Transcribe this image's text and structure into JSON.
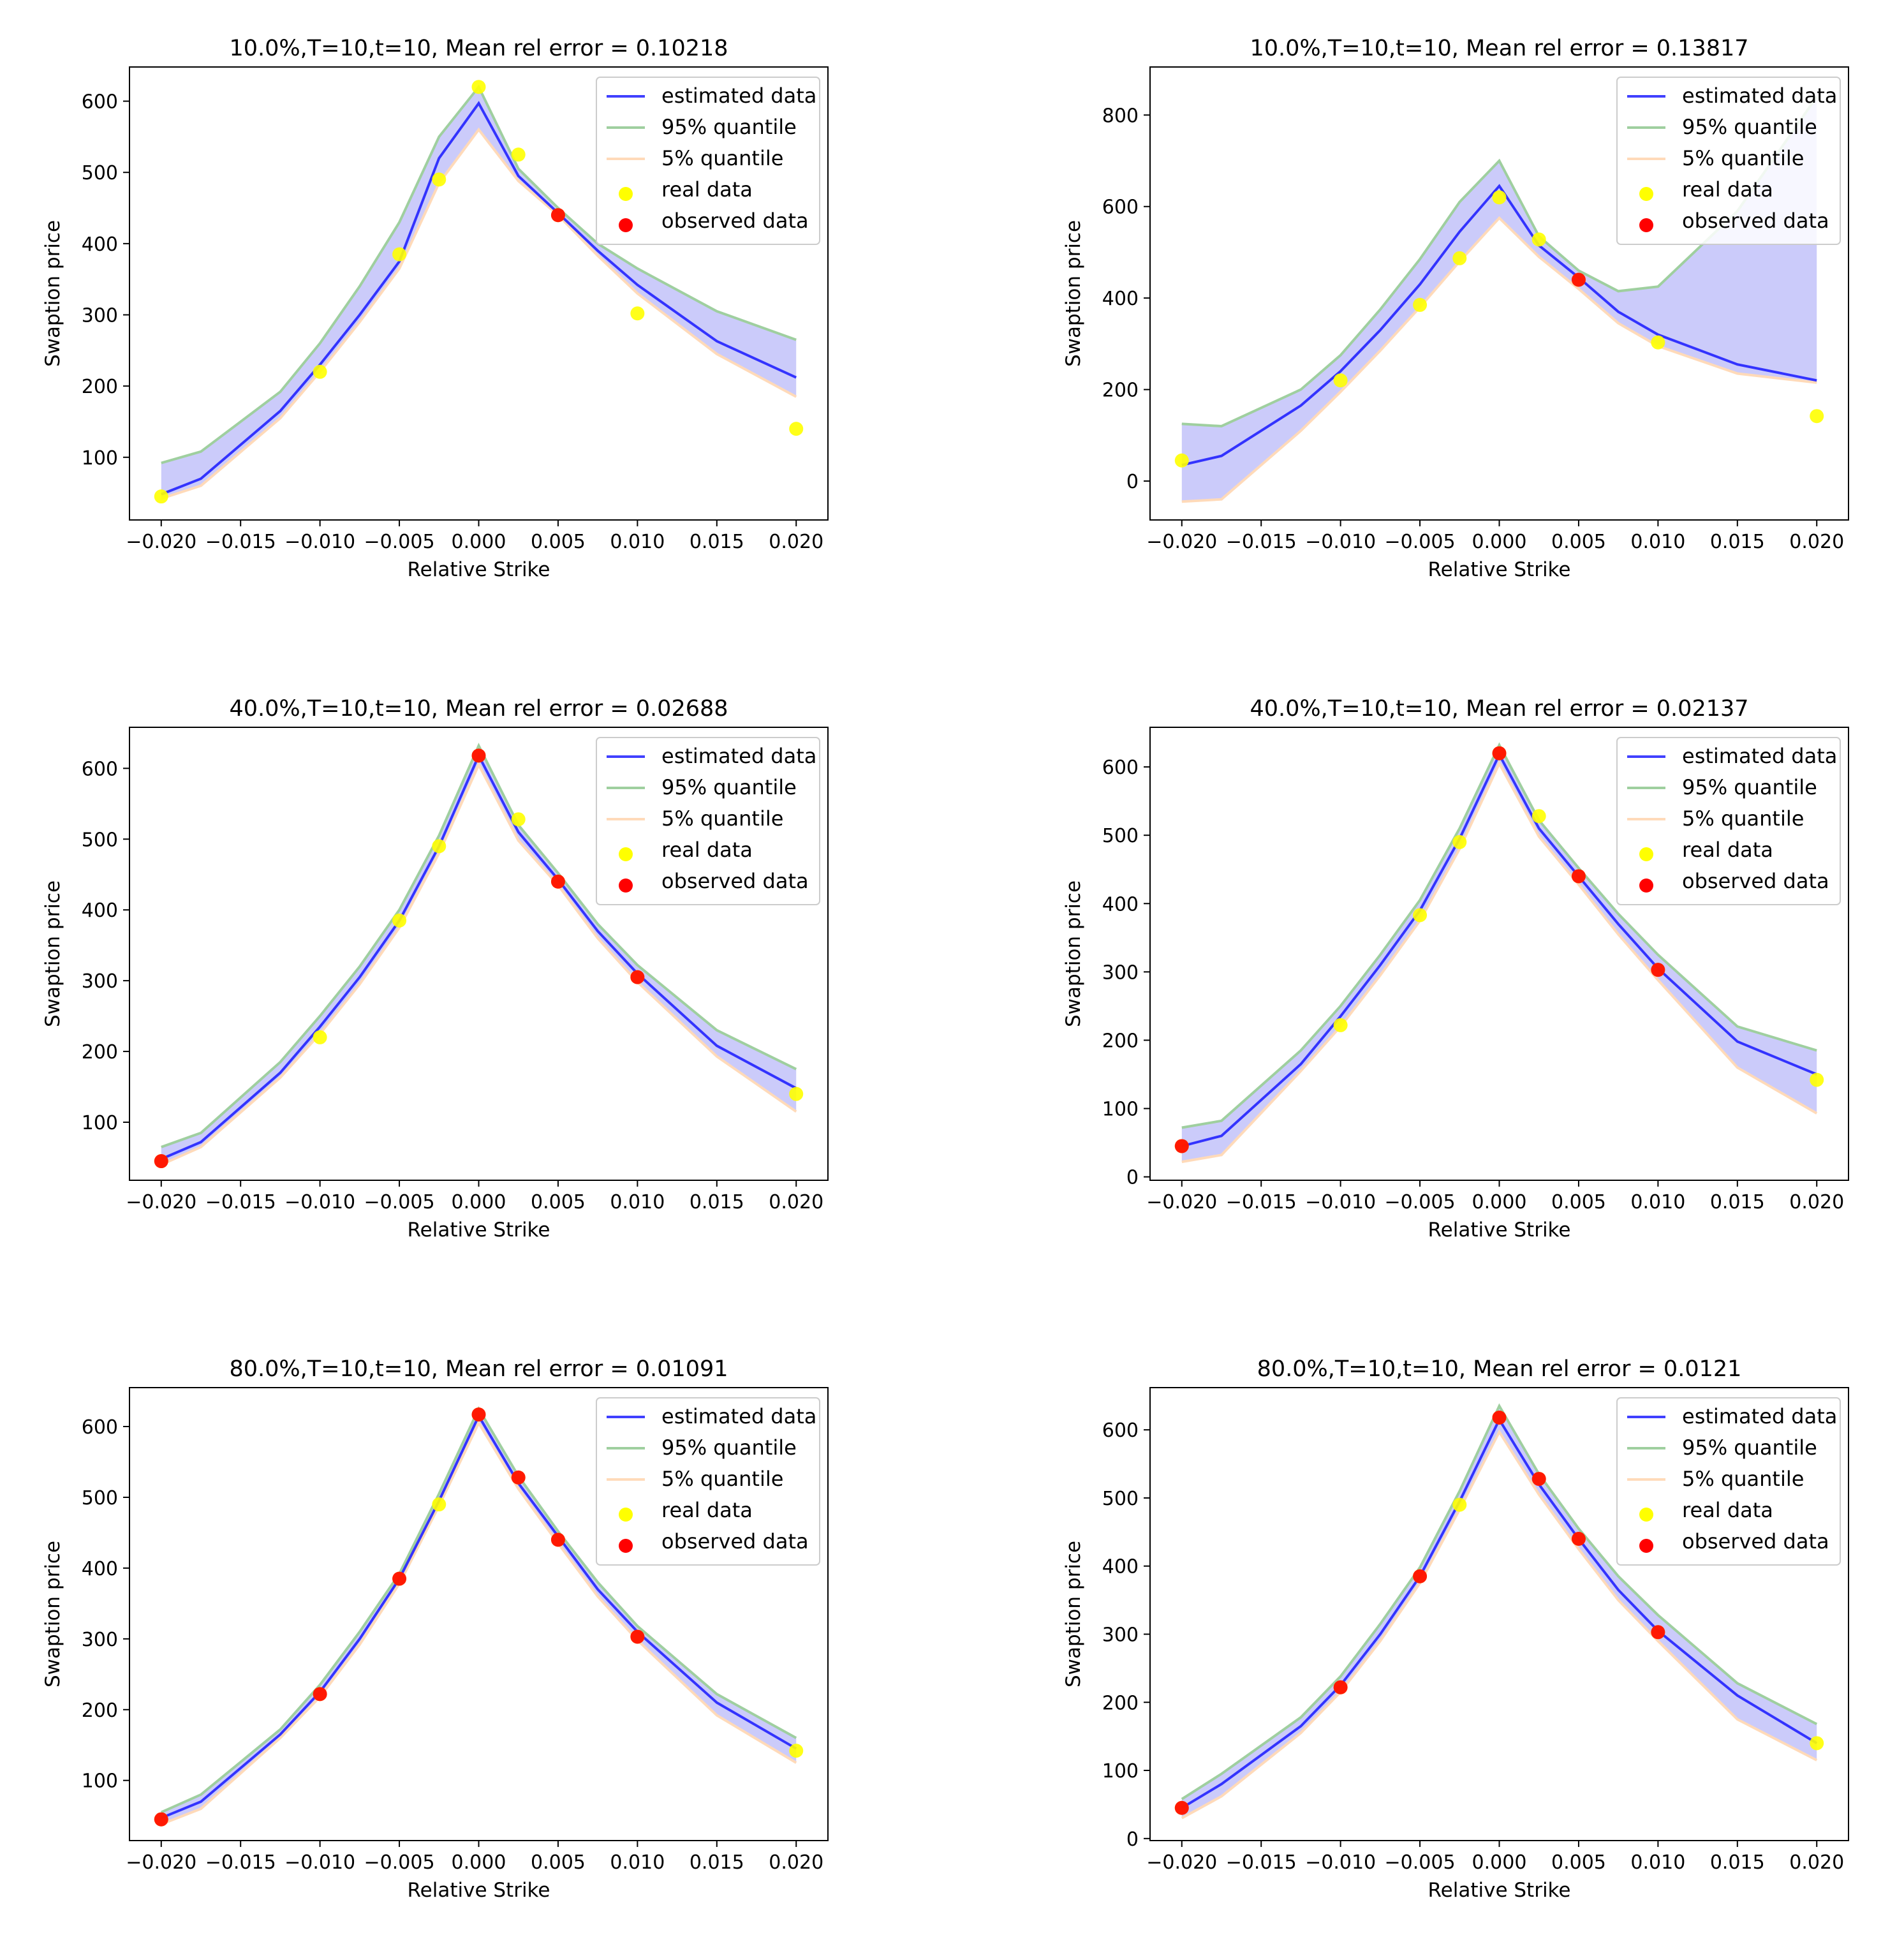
{
  "chart_data": [
    {
      "type": "line",
      "title": "10.0%,T=10,t=10, Mean rel error = 0.10218",
      "xlabel": "Relative Strike",
      "ylabel": "Swaption price",
      "xlim": [
        -0.022,
        0.022
      ],
      "ylim": [
        12,
        648
      ],
      "xticks": [
        -0.02,
        -0.015,
        -0.01,
        -0.005,
        0.0,
        0.005,
        0.01,
        0.015,
        0.02
      ],
      "xtick_labels": [
        "−0.020",
        "−0.015",
        "−0.010",
        "−0.005",
        "0.000",
        "0.005",
        "0.010",
        "0.015",
        "0.020"
      ],
      "yticks": [
        100,
        200,
        300,
        400,
        500,
        600
      ],
      "ytick_labels": [
        "100",
        "200",
        "300",
        "400",
        "500",
        "600"
      ],
      "x": [
        -0.02,
        -0.0175,
        -0.0125,
        -0.01,
        -0.0075,
        -0.005,
        -0.0025,
        0.0,
        0.0025,
        0.005,
        0.0075,
        0.01,
        0.015,
        0.02
      ],
      "estimated": [
        48,
        70,
        165,
        230,
        300,
        375,
        520,
        597,
        495,
        443,
        390,
        342,
        263,
        212
      ],
      "upper": [
        92,
        108,
        192,
        260,
        340,
        430,
        550,
        620,
        505,
        450,
        400,
        365,
        305,
        265
      ],
      "lower": [
        42,
        60,
        155,
        220,
        290,
        365,
        485,
        560,
        488,
        440,
        383,
        330,
        245,
        185
      ],
      "real": [
        {
          "x": -0.02,
          "y": 45
        },
        {
          "x": -0.01,
          "y": 220
        },
        {
          "x": -0.005,
          "y": 385
        },
        {
          "x": -0.0025,
          "y": 490
        },
        {
          "x": 0.0,
          "y": 620
        },
        {
          "x": 0.0025,
          "y": 525
        },
        {
          "x": 0.005,
          "y": 440
        },
        {
          "x": 0.01,
          "y": 302
        },
        {
          "x": 0.02,
          "y": 140
        }
      ],
      "observed": [
        {
          "x": 0.005,
          "y": 440
        }
      ],
      "legend": [
        "estimated data",
        "95% quantile",
        "5% quantile",
        "real data",
        "observed data"
      ],
      "legend_loc": "upper right",
      "grid": false
    },
    {
      "type": "line",
      "title": "10.0%,T=10,t=10, Mean rel error = 0.13817",
      "xlabel": "Relative Strike",
      "ylabel": "Swaption price",
      "xlim": [
        -0.022,
        0.022
      ],
      "ylim": [
        -85,
        905
      ],
      "xticks": [
        -0.02,
        -0.015,
        -0.01,
        -0.005,
        0.0,
        0.005,
        0.01,
        0.015,
        0.02
      ],
      "xtick_labels": [
        "−0.020",
        "−0.015",
        "−0.010",
        "−0.005",
        "0.000",
        "0.005",
        "0.010",
        "0.015",
        "0.020"
      ],
      "yticks": [
        0,
        200,
        400,
        600,
        800
      ],
      "ytick_labels": [
        "0",
        "200",
        "400",
        "600",
        "800"
      ],
      "x": [
        -0.02,
        -0.0175,
        -0.0125,
        -0.01,
        -0.0075,
        -0.005,
        -0.0025,
        0.0,
        0.0025,
        0.005,
        0.0075,
        0.01,
        0.015,
        0.02
      ],
      "estimated": [
        35,
        55,
        165,
        240,
        330,
        430,
        545,
        645,
        515,
        445,
        370,
        320,
        255,
        220
      ],
      "upper": [
        125,
        120,
        200,
        275,
        375,
        485,
        610,
        700,
        535,
        460,
        415,
        425,
        590,
        840
      ],
      "lower": [
        -45,
        -40,
        110,
        195,
        285,
        380,
        480,
        575,
        490,
        420,
        345,
        295,
        235,
        215
      ],
      "real": [
        {
          "x": -0.02,
          "y": 45
        },
        {
          "x": -0.01,
          "y": 220
        },
        {
          "x": -0.005,
          "y": 385
        },
        {
          "x": -0.0025,
          "y": 487
        },
        {
          "x": 0.0,
          "y": 620
        },
        {
          "x": 0.0025,
          "y": 528
        },
        {
          "x": 0.005,
          "y": 440
        },
        {
          "x": 0.01,
          "y": 303
        },
        {
          "x": 0.02,
          "y": 142
        }
      ],
      "observed": [
        {
          "x": 0.005,
          "y": 440
        }
      ],
      "legend": [
        "estimated data",
        "95% quantile",
        "5% quantile",
        "real data",
        "observed data"
      ],
      "legend_loc": "upper right",
      "grid": false
    },
    {
      "type": "line",
      "title": "40.0%,T=10,t=10, Mean rel error = 0.02688",
      "xlabel": "Relative Strike",
      "ylabel": "Swaption price",
      "xlim": [
        -0.022,
        0.022
      ],
      "ylim": [
        18,
        658
      ],
      "xticks": [
        -0.02,
        -0.015,
        -0.01,
        -0.005,
        0.0,
        0.005,
        0.01,
        0.015,
        0.02
      ],
      "xtick_labels": [
        "−0.020",
        "−0.015",
        "−0.010",
        "−0.005",
        "0.000",
        "0.005",
        "0.010",
        "0.015",
        "0.020"
      ],
      "yticks": [
        100,
        200,
        300,
        400,
        500,
        600
      ],
      "ytick_labels": [
        "100",
        "200",
        "300",
        "400",
        "500",
        "600"
      ],
      "x": [
        -0.02,
        -0.0175,
        -0.0125,
        -0.01,
        -0.0075,
        -0.005,
        -0.0025,
        0.0,
        0.0025,
        0.005,
        0.0075,
        0.01,
        0.015,
        0.02
      ],
      "estimated": [
        48,
        72,
        170,
        235,
        305,
        385,
        490,
        618,
        510,
        443,
        370,
        310,
        208,
        148
      ],
      "upper": [
        65,
        85,
        185,
        250,
        320,
        400,
        505,
        632,
        520,
        452,
        380,
        322,
        230,
        175
      ],
      "lower": [
        40,
        65,
        163,
        225,
        295,
        375,
        480,
        605,
        498,
        435,
        360,
        298,
        193,
        115
      ],
      "real": [
        {
          "x": -0.02,
          "y": 45
        },
        {
          "x": -0.01,
          "y": 220
        },
        {
          "x": -0.005,
          "y": 385
        },
        {
          "x": -0.0025,
          "y": 490
        },
        {
          "x": 0.0,
          "y": 618
        },
        {
          "x": 0.0025,
          "y": 528
        },
        {
          "x": 0.005,
          "y": 440
        },
        {
          "x": 0.01,
          "y": 305
        },
        {
          "x": 0.02,
          "y": 140
        }
      ],
      "observed": [
        {
          "x": -0.02,
          "y": 45
        },
        {
          "x": 0.0,
          "y": 618
        },
        {
          "x": 0.005,
          "y": 440
        },
        {
          "x": 0.01,
          "y": 305
        }
      ],
      "legend": [
        "estimated data",
        "95% quantile",
        "5% quantile",
        "real data",
        "observed data"
      ],
      "legend_loc": "upper right",
      "grid": false
    },
    {
      "type": "line",
      "title": "40.0%,T=10,t=10, Mean rel error = 0.02137",
      "xlabel": "Relative Strike",
      "ylabel": "Swaption price",
      "xlim": [
        -0.022,
        0.022
      ],
      "ylim": [
        -5,
        658
      ],
      "xticks": [
        -0.02,
        -0.015,
        -0.01,
        -0.005,
        0.0,
        0.005,
        0.01,
        0.015,
        0.02
      ],
      "xtick_labels": [
        "−0.020",
        "−0.015",
        "−0.010",
        "−0.005",
        "0.000",
        "0.005",
        "0.010",
        "0.015",
        "0.020"
      ],
      "yticks": [
        0,
        100,
        200,
        300,
        400,
        500,
        600
      ],
      "ytick_labels": [
        "0",
        "100",
        "200",
        "300",
        "400",
        "500",
        "600"
      ],
      "x": [
        -0.02,
        -0.0175,
        -0.0125,
        -0.01,
        -0.0075,
        -0.005,
        -0.0025,
        0.0,
        0.0025,
        0.005,
        0.0075,
        0.01,
        0.015,
        0.02
      ],
      "estimated": [
        45,
        60,
        165,
        235,
        310,
        390,
        495,
        618,
        510,
        440,
        370,
        305,
        198,
        150
      ],
      "upper": [
        72,
        82,
        185,
        250,
        325,
        405,
        510,
        632,
        522,
        452,
        385,
        325,
        220,
        185
      ],
      "lower": [
        22,
        32,
        155,
        220,
        295,
        375,
        480,
        605,
        498,
        428,
        355,
        288,
        160,
        93
      ],
      "real": [
        {
          "x": -0.02,
          "y": 45
        },
        {
          "x": -0.01,
          "y": 222
        },
        {
          "x": -0.005,
          "y": 383
        },
        {
          "x": -0.0025,
          "y": 490
        },
        {
          "x": 0.0,
          "y": 620
        },
        {
          "x": 0.0025,
          "y": 528
        },
        {
          "x": 0.005,
          "y": 440
        },
        {
          "x": 0.01,
          "y": 303
        },
        {
          "x": 0.02,
          "y": 142
        }
      ],
      "observed": [
        {
          "x": -0.02,
          "y": 45
        },
        {
          "x": 0.0,
          "y": 620
        },
        {
          "x": 0.005,
          "y": 440
        },
        {
          "x": 0.01,
          "y": 303
        }
      ],
      "legend": [
        "estimated data",
        "95% quantile",
        "5% quantile",
        "real data",
        "observed data"
      ],
      "legend_loc": "upper right",
      "grid": false
    },
    {
      "type": "line",
      "title": "80.0%,T=10,t=10, Mean rel error = 0.01091",
      "xlabel": "Relative Strike",
      "ylabel": "Swaption price",
      "xlim": [
        -0.022,
        0.022
      ],
      "ylim": [
        15,
        655
      ],
      "xticks": [
        -0.02,
        -0.015,
        -0.01,
        -0.005,
        0.0,
        0.005,
        0.01,
        0.015,
        0.02
      ],
      "xtick_labels": [
        "−0.020",
        "−0.015",
        "−0.010",
        "−0.005",
        "0.000",
        "0.005",
        "0.010",
        "0.015",
        "0.020"
      ],
      "yticks": [
        100,
        200,
        300,
        400,
        500,
        600
      ],
      "ytick_labels": [
        "100",
        "200",
        "300",
        "400",
        "500",
        "600"
      ],
      "x": [
        -0.02,
        -0.0175,
        -0.0125,
        -0.01,
        -0.0075,
        -0.005,
        -0.0025,
        0.0,
        0.0025,
        0.005,
        0.0075,
        0.01,
        0.015,
        0.02
      ],
      "estimated": [
        47,
        70,
        165,
        225,
        300,
        385,
        495,
        615,
        520,
        445,
        370,
        310,
        210,
        145
      ],
      "upper": [
        55,
        80,
        172,
        235,
        310,
        392,
        505,
        625,
        530,
        452,
        380,
        318,
        222,
        160
      ],
      "lower": [
        38,
        60,
        160,
        218,
        292,
        378,
        488,
        605,
        512,
        435,
        360,
        298,
        192,
        125
      ],
      "real": [
        {
          "x": -0.02,
          "y": 45
        },
        {
          "x": -0.01,
          "y": 222
        },
        {
          "x": -0.005,
          "y": 385
        },
        {
          "x": -0.0025,
          "y": 490
        },
        {
          "x": 0.0,
          "y": 617
        },
        {
          "x": 0.0025,
          "y": 528
        },
        {
          "x": 0.005,
          "y": 440
        },
        {
          "x": 0.01,
          "y": 303
        },
        {
          "x": 0.02,
          "y": 142
        }
      ],
      "observed": [
        {
          "x": -0.02,
          "y": 45
        },
        {
          "x": -0.01,
          "y": 222
        },
        {
          "x": -0.005,
          "y": 385
        },
        {
          "x": 0.0,
          "y": 617
        },
        {
          "x": 0.0025,
          "y": 528
        },
        {
          "x": 0.005,
          "y": 440
        },
        {
          "x": 0.01,
          "y": 303
        }
      ],
      "legend": [
        "estimated data",
        "95% quantile",
        "5% quantile",
        "real data",
        "observed data"
      ],
      "legend_loc": "upper right",
      "grid": false
    },
    {
      "type": "line",
      "title": "80.0%,T=10,t=10, Mean rel error = 0.0121",
      "xlabel": "Relative Strike",
      "ylabel": "Swaption price",
      "xlim": [
        -0.022,
        0.022
      ],
      "ylim": [
        -3,
        662
      ],
      "xticks": [
        -0.02,
        -0.015,
        -0.01,
        -0.005,
        0.0,
        0.005,
        0.01,
        0.015,
        0.02
      ],
      "xtick_labels": [
        "−0.020",
        "−0.015",
        "−0.010",
        "−0.005",
        "0.000",
        "0.005",
        "0.010",
        "0.015",
        "0.020"
      ],
      "yticks": [
        0,
        100,
        200,
        300,
        400,
        500,
        600
      ],
      "ytick_labels": [
        "0",
        "100",
        "200",
        "300",
        "400",
        "500",
        "600"
      ],
      "x": [
        -0.02,
        -0.0175,
        -0.0125,
        -0.01,
        -0.0075,
        -0.005,
        -0.0025,
        0.0,
        0.0025,
        0.005,
        0.0075,
        0.01,
        0.015,
        0.02
      ],
      "estimated": [
        45,
        80,
        165,
        225,
        300,
        385,
        495,
        615,
        520,
        440,
        365,
        305,
        210,
        140
      ],
      "upper": [
        58,
        95,
        178,
        238,
        315,
        398,
        510,
        635,
        535,
        455,
        385,
        328,
        228,
        168
      ],
      "lower": [
        30,
        62,
        155,
        215,
        290,
        375,
        483,
        597,
        505,
        425,
        350,
        290,
        175,
        115
      ],
      "real": [
        {
          "x": -0.02,
          "y": 45
        },
        {
          "x": -0.01,
          "y": 222
        },
        {
          "x": -0.005,
          "y": 385
        },
        {
          "x": -0.0025,
          "y": 490
        },
        {
          "x": 0.0,
          "y": 618
        },
        {
          "x": 0.0025,
          "y": 528
        },
        {
          "x": 0.005,
          "y": 440
        },
        {
          "x": 0.01,
          "y": 303
        },
        {
          "x": 0.02,
          "y": 140
        }
      ],
      "observed": [
        {
          "x": -0.02,
          "y": 45
        },
        {
          "x": -0.01,
          "y": 222
        },
        {
          "x": -0.005,
          "y": 385
        },
        {
          "x": 0.0,
          "y": 618
        },
        {
          "x": 0.0025,
          "y": 528
        },
        {
          "x": 0.005,
          "y": 440
        },
        {
          "x": 0.01,
          "y": 303
        }
      ],
      "legend": [
        "estimated data",
        "95% quantile",
        "5% quantile",
        "real data",
        "observed data"
      ],
      "legend_loc": "upper right",
      "grid": false
    }
  ],
  "colors": {
    "estimated": "#0000ff",
    "band": "#c8c8fa",
    "upper": "#9fcf9f",
    "lower": "#ffdab9",
    "real": "#ffff00",
    "observed": "#ff0000"
  }
}
